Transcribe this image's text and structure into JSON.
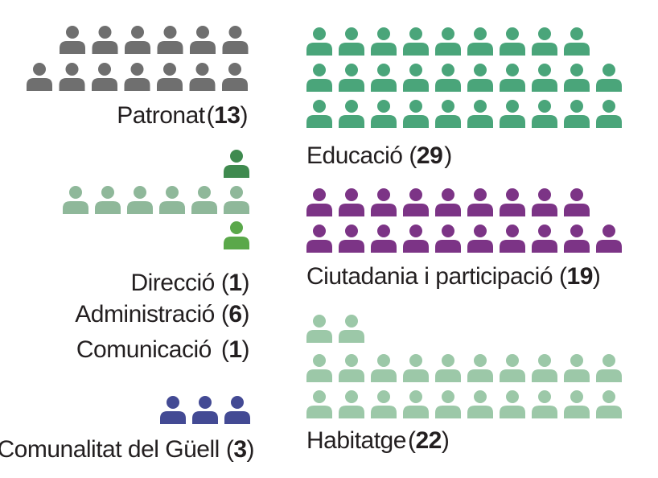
{
  "chart_data": {
    "type": "pictogram",
    "unit": "person",
    "groups": [
      {
        "id": "patronat",
        "name": "Patronat",
        "count": 13,
        "color": "#6f6f6f",
        "label": {
          "name": "Patronat",
          "value": "13"
        }
      },
      {
        "id": "direccio",
        "name": "Direcció",
        "count": 1,
        "color": "#3f8a4f",
        "label": {
          "name": "Direcció",
          "value": "1"
        }
      },
      {
        "id": "administracio",
        "name": "Administració",
        "count": 6,
        "color": "#8fb89a",
        "label": {
          "name": "Administració",
          "value": "6"
        }
      },
      {
        "id": "comunicacio",
        "name": "Comunicació",
        "count": 1,
        "color": "#5aa84a",
        "label": {
          "name": "Comunicació",
          "value": "1"
        }
      },
      {
        "id": "comunalitat",
        "name": "Comunalitat del Güell",
        "count": 3,
        "color": "#434a94",
        "label": {
          "name": "Comunalitat del Güell",
          "value": "3"
        }
      },
      {
        "id": "educacio",
        "name": "Educació",
        "count": 29,
        "color": "#4aa57a",
        "label": {
          "name": "Educació",
          "value": "29"
        }
      },
      {
        "id": "ciutadania",
        "name": "Ciutadania i participació",
        "count": 19,
        "color": "#7c3486",
        "label": {
          "name": "Ciutadania i participació",
          "value": "19"
        }
      },
      {
        "id": "habitatge",
        "name": "Habitatge",
        "count": 22,
        "color": "#9cc8a8",
        "label": {
          "name": "Habitatge",
          "value": "22"
        }
      }
    ]
  }
}
